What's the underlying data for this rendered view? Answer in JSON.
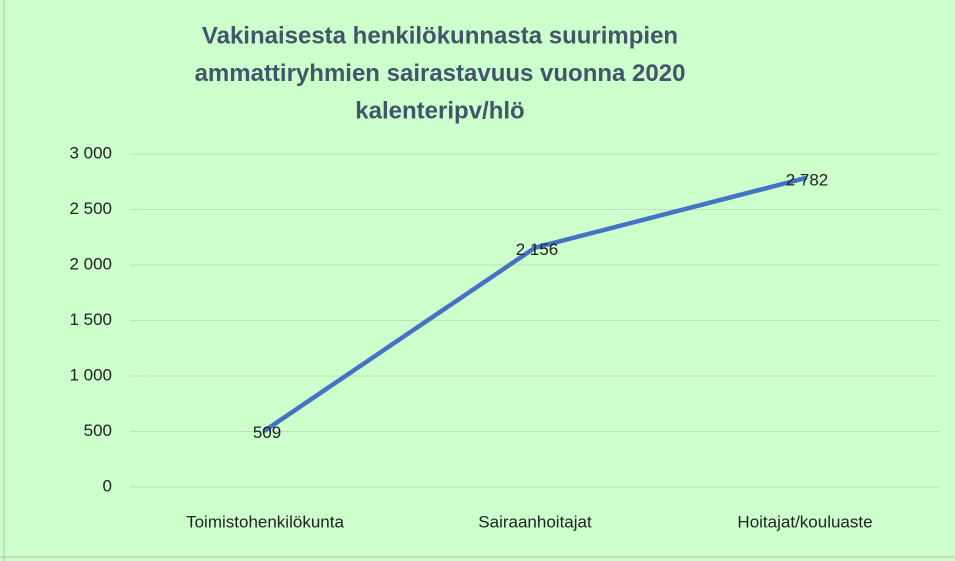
{
  "chart_data": {
    "type": "line",
    "title": [
      "Vakinaisesta henkilökunnasta suurimpien",
      "ammattiryhmien sairastavuus vuonna 2020",
      "kalenteripv/hlö"
    ],
    "categories": [
      "Toimistohenkilökunta",
      "Sairaanhoitajat",
      "Hoitajat/kouluaste"
    ],
    "values": [
      509,
      2156,
      2782
    ],
    "value_labels": [
      "509",
      "2 156",
      "2 782"
    ],
    "color": "#4472c4",
    "ylim": [
      0,
      3000
    ],
    "yticks": [
      0,
      500,
      {
        "value": 1000,
        "label": "1 000"
      },
      {
        "value": 1500,
        "label": "1 500"
      },
      {
        "value": 2000,
        "label": "2 000"
      },
      {
        "value": 2500,
        "label": "2 500"
      },
      {
        "value": 3000,
        "label": "3 000"
      }
    ],
    "grid": true
  }
}
